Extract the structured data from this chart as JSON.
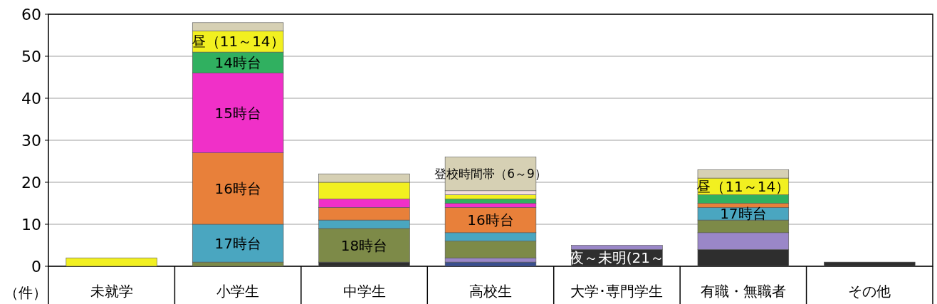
{
  "chart_data": {
    "type": "bar",
    "stacked": true,
    "ylabel": "（件）",
    "categories": [
      "未就学",
      "小学生",
      "中学生",
      "高校生",
      "大学･専門学生",
      "有職・無職者",
      "その他"
    ],
    "series": [
      {
        "color": "#2e2e2e",
        "values": [
          0,
          0,
          1,
          0,
          4,
          4,
          1
        ]
      },
      {
        "color": "#3a4f8f",
        "values": [
          0,
          0,
          0,
          1,
          0,
          0,
          0
        ]
      },
      {
        "color": "#9a87c8",
        "values": [
          0,
          0,
          0,
          1,
          1,
          4,
          0
        ]
      },
      {
        "color": "#7d8a48",
        "values": [
          0,
          1,
          8,
          4,
          0,
          3,
          0
        ]
      },
      {
        "color": "#4aa6c0",
        "values": [
          0,
          9,
          2,
          2,
          0,
          3,
          0
        ]
      },
      {
        "color": "#e8803a",
        "values": [
          0,
          17,
          3,
          6,
          0,
          1,
          0
        ]
      },
      {
        "color": "#f030c8",
        "values": [
          0,
          19,
          2,
          1,
          0,
          0,
          0
        ]
      },
      {
        "color": "#30b060",
        "values": [
          0,
          5,
          0,
          1,
          0,
          2,
          0
        ]
      },
      {
        "color": "#f2f020",
        "values": [
          2,
          5,
          4,
          1,
          0,
          4,
          0
        ]
      },
      {
        "color": "#f4dede",
        "values": [
          0,
          0,
          0,
          1,
          0,
          0,
          0
        ]
      },
      {
        "color": "#d6d0b4",
        "values": [
          0,
          2,
          2,
          8,
          0,
          2,
          0
        ]
      }
    ],
    "ylim": [
      0,
      60
    ],
    "yticks": [
      0,
      10,
      20,
      30,
      40,
      50,
      60
    ],
    "grid": "y",
    "annotations": [
      {
        "text": "昼（11～14）",
        "x": "小学生",
        "y": 56
      },
      {
        "text": "14時台",
        "x": "小学生",
        "y": 51
      },
      {
        "text": "15時台",
        "x": "小学生",
        "y": 46
      },
      {
        "text": "16時台",
        "x": "小学生",
        "y": 27
      },
      {
        "text": "17時台",
        "x": "小学生",
        "y": 10
      },
      {
        "text": "18時台",
        "x": "中学生",
        "y": 9
      },
      {
        "text": "16時台",
        "x": "高校生",
        "y": 14
      },
      {
        "text": "登校時間帯（6～9）",
        "x": "高校生",
        "y": 26
      },
      {
        "text": "夜～未明(21～",
        "x": "大学･専門学生",
        "y": 4
      },
      {
        "text": "昼（11～14）",
        "x": "有職・無職者",
        "y": 21
      },
      {
        "text": "17時台",
        "x": "有職・無職者",
        "y": 14
      }
    ]
  }
}
